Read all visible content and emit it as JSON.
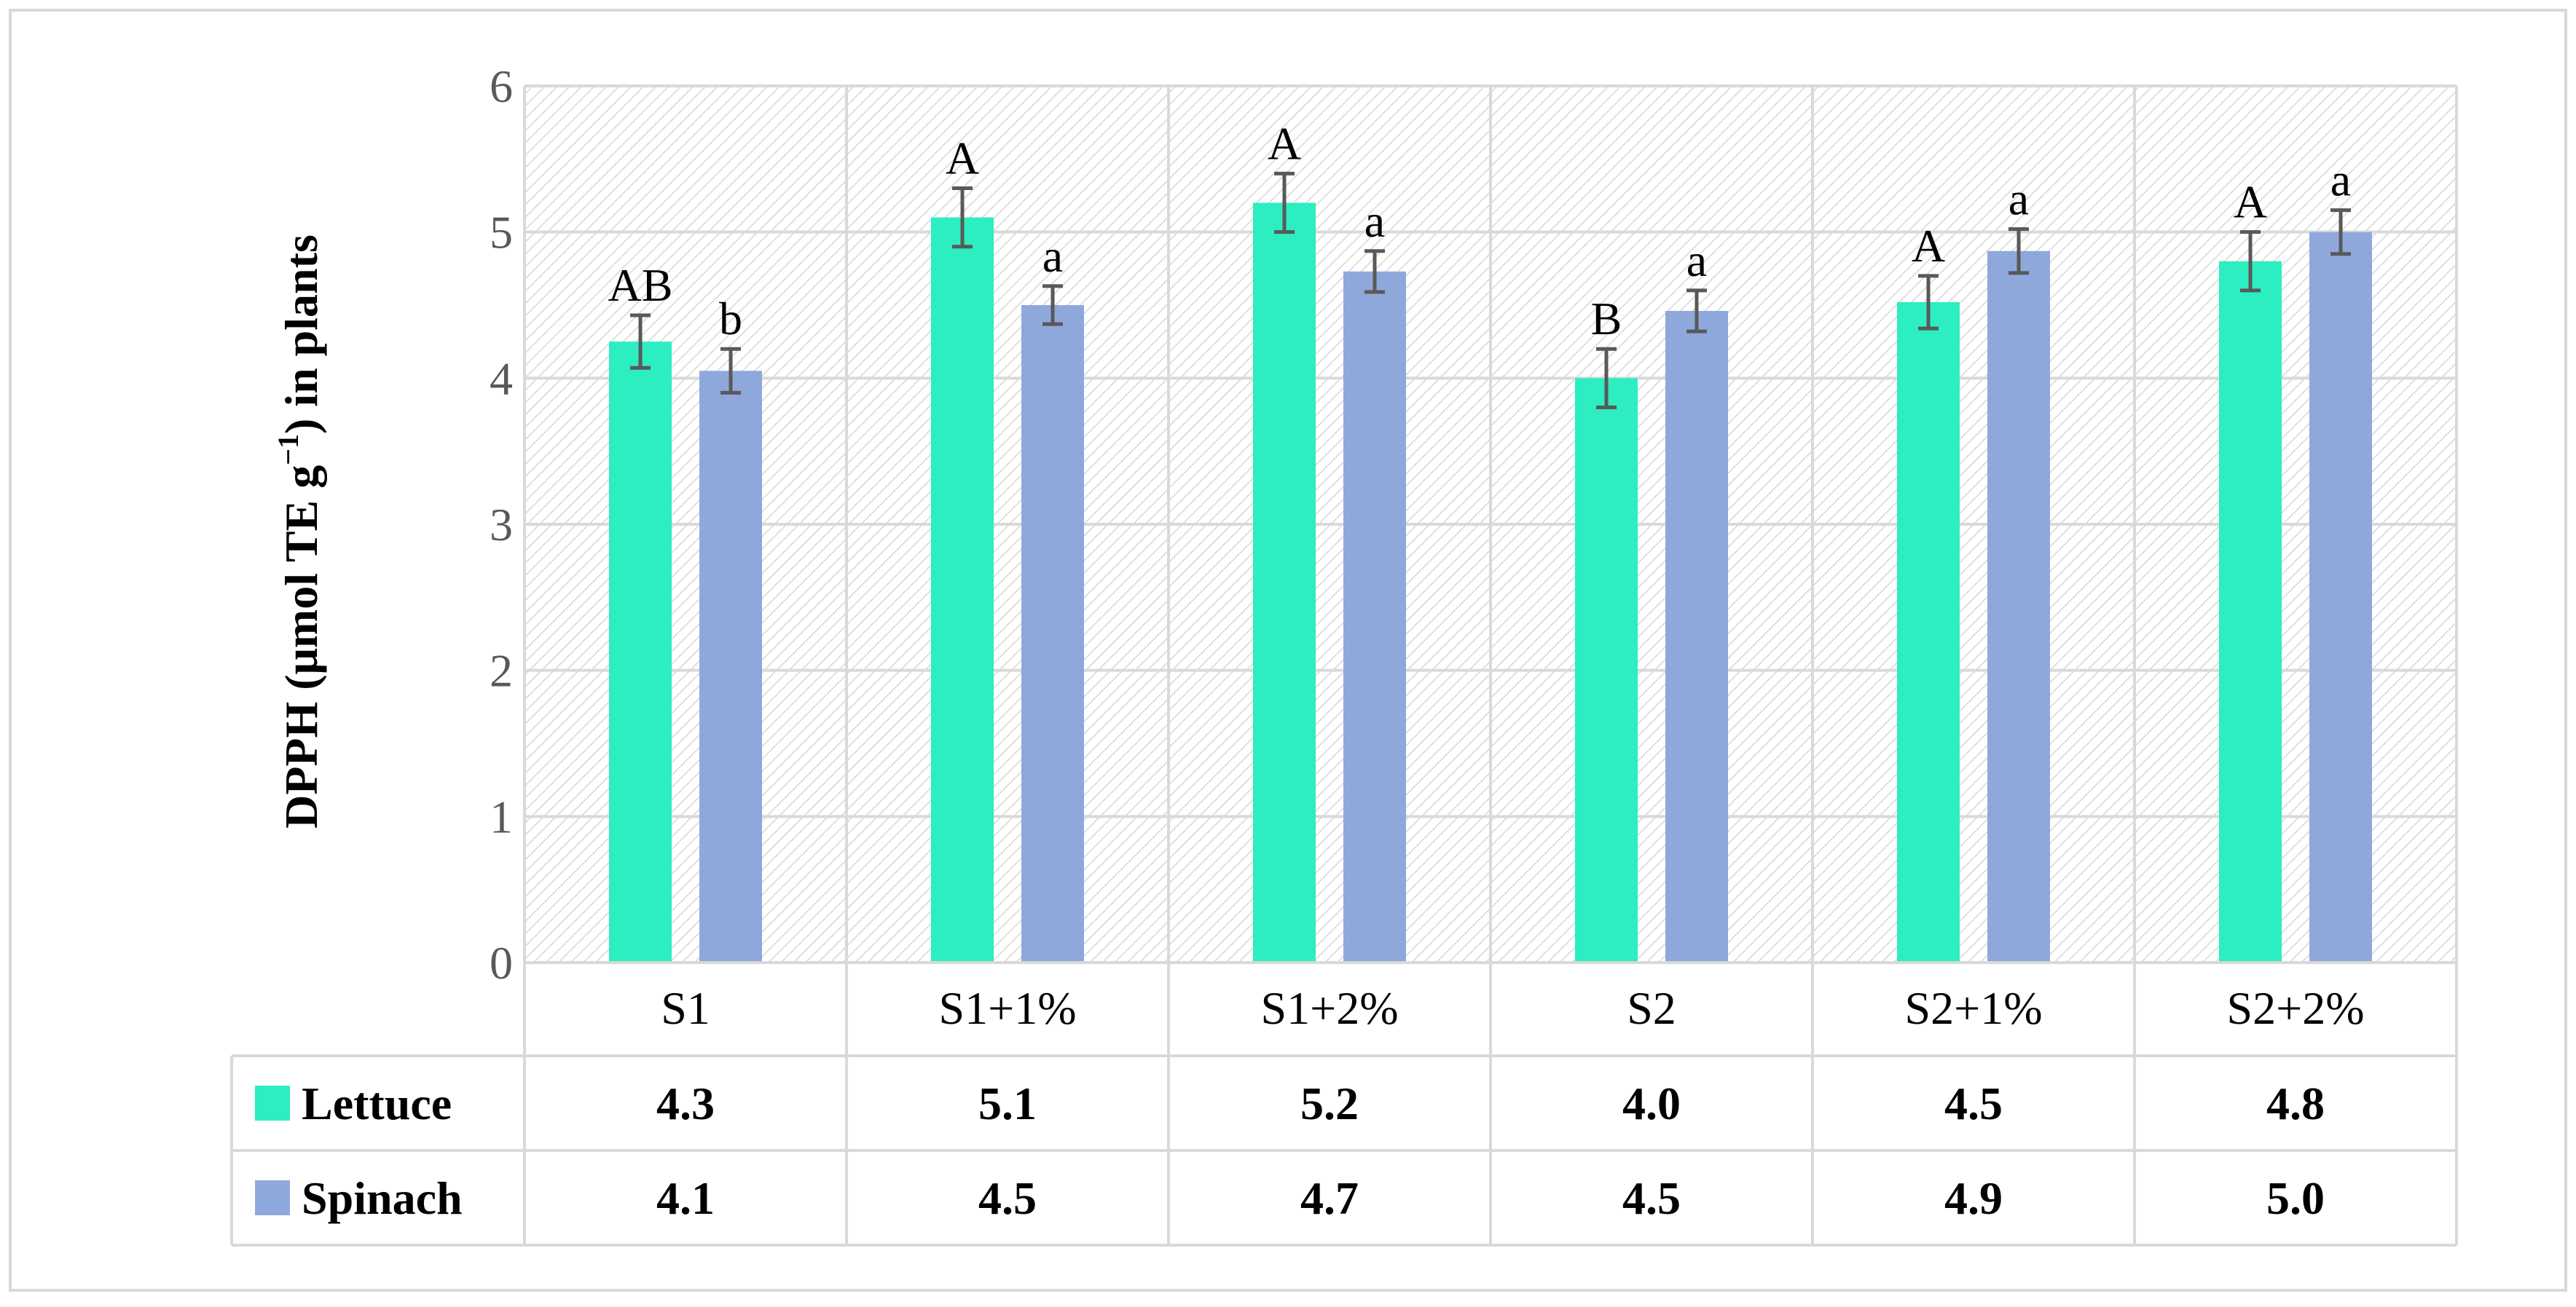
{
  "colors": {
    "lettuce": "#2ceec0",
    "spinach": "#8fa8dc",
    "error_bar": "#595959",
    "grid": "#d9d9d9",
    "hatch_line": "#d6d6d6",
    "text": "#000000",
    "tick_text": "#595959"
  },
  "chart_data": {
    "type": "bar",
    "title": "",
    "xlabel": "",
    "ylabel": "DPPH (μmol TE g",
    "ylabel_superscript": "−1",
    "ylabel_suffix": ") in plants",
    "ylim": [
      0,
      6
    ],
    "yticks": [
      "0",
      "1",
      "2",
      "3",
      "4",
      "5",
      "6"
    ],
    "categories": [
      "S1",
      "S1+1%",
      "S1+2%",
      "S2",
      "S2+1%",
      "S2+2%"
    ],
    "series": [
      {
        "name": "Lettuce",
        "values": [
          4.25,
          5.1,
          5.2,
          4.0,
          4.52,
          4.8
        ],
        "error": [
          0.18,
          0.2,
          0.2,
          0.2,
          0.18,
          0.2
        ],
        "letters": [
          "AB",
          "A",
          "A",
          "B",
          "A",
          "A"
        ],
        "table_values": [
          "4.3",
          "5.1",
          "5.2",
          "4.0",
          "4.5",
          "4.8"
        ]
      },
      {
        "name": "Spinach",
        "values": [
          4.05,
          4.5,
          4.73,
          4.46,
          4.87,
          5.0
        ],
        "error": [
          0.15,
          0.13,
          0.14,
          0.14,
          0.15,
          0.15
        ],
        "letters": [
          "b",
          "a",
          "a",
          "a",
          "a",
          "a"
        ],
        "table_values": [
          "4.1",
          "4.5",
          "4.7",
          "4.5",
          "4.9",
          "5.0"
        ]
      }
    ],
    "grid": true,
    "legend": "data-table"
  }
}
